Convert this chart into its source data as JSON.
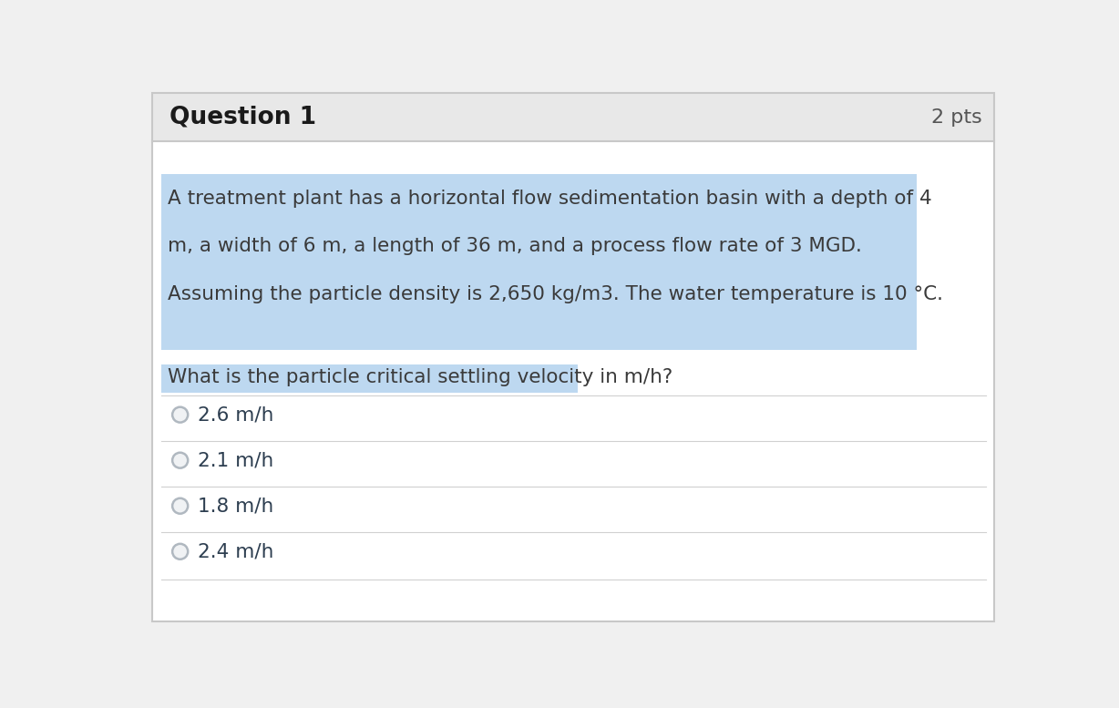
{
  "header_text": "Question 1",
  "pts_text": "2 pts",
  "header_bg": "#e8e8e8",
  "header_text_color": "#1a1a1a",
  "body_bg": "#ffffff",
  "outer_border_color": "#c8c8c8",
  "highlight_bg": "#bdd8f0",
  "highlight_text_color": "#3a3a3a",
  "question_lines": [
    "A treatment plant has a horizontal flow sedimentation basin with a depth of 4",
    "m, a width of 6 m, a length of 36 m, and a process flow rate of 3 MGD.",
    "Assuming the particle density is 2,650 kg/m3. The water temperature is 10 °C."
  ],
  "sub_question": "What is the particle critical settling velocity in m/h?",
  "options": [
    "2.6 m/h",
    "2.1 m/h",
    "1.8 m/h",
    "2.4 m/h"
  ],
  "option_text_color": "#2d3e50",
  "divider_color": "#d0d0d0",
  "radio_color": "#b0b8c0",
  "radio_face": "#f0f2f4"
}
